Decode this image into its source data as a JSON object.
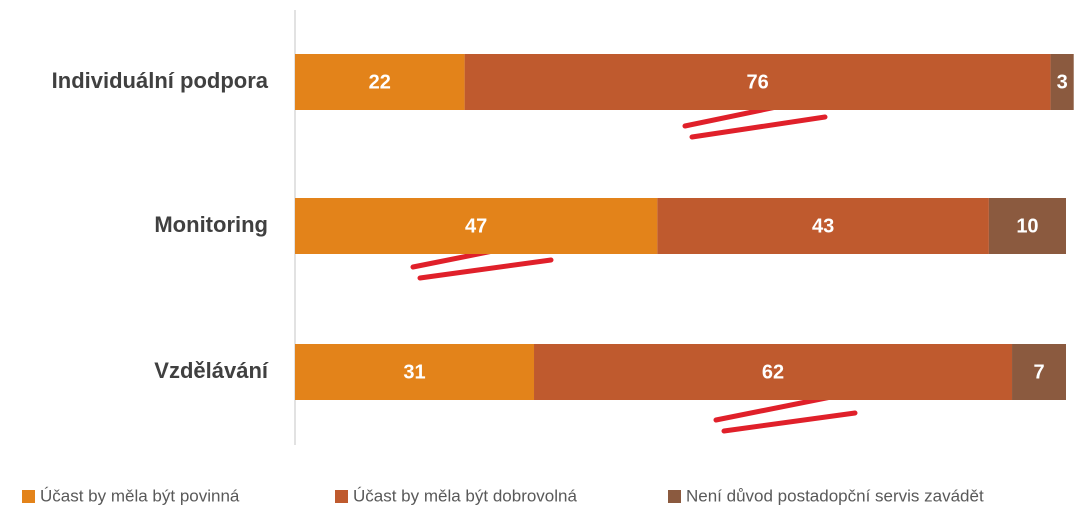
{
  "chart_data": {
    "type": "bar",
    "orientation": "horizontal",
    "stacked": true,
    "categories": [
      "Individuální podpora",
      "Monitoring",
      "Vzdělávání"
    ],
    "series": [
      {
        "name": "Účast by měla být povinná",
        "color": "#e3831a",
        "values": [
          22,
          47,
          31
        ]
      },
      {
        "name": "Účast by měla být dobrovolná",
        "color": "#bf5a2e",
        "values": [
          76,
          43,
          62
        ]
      },
      {
        "name": "Není důvod postadopční servis zavádět",
        "color": "#8b5a3f",
        "values": [
          3,
          10,
          7
        ]
      }
    ],
    "xlim": [
      0,
      100
    ],
    "legend": "bottom"
  }
}
